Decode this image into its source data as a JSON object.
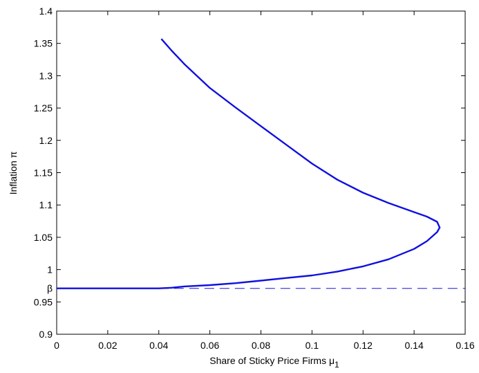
{
  "chart_data": {
    "type": "line",
    "xlabel": "Share of Sticky Price Firms μ",
    "xlabel_subscript": "1",
    "ylabel": "Inflation π",
    "xlim": [
      0,
      0.16
    ],
    "ylim": [
      0.9,
      1.4
    ],
    "x_ticks": [
      "0",
      "0.02",
      "0.04",
      "0.06",
      "0.08",
      "0.1",
      "0.12",
      "0.14",
      "0.16"
    ],
    "y_ticks": [
      "0.9",
      "0.95",
      "1",
      "1.05",
      "1.1",
      "1.15",
      "1.2",
      "1.25",
      "1.3",
      "1.35",
      "1.4"
    ],
    "grid": false,
    "colors": {
      "series": "#1010e0",
      "axes": "#000000"
    },
    "series": [
      {
        "style": "solid",
        "points": [
          [
            0,
            0.971
          ],
          [
            0.02,
            0.971
          ],
          [
            0.04,
            0.971
          ],
          [
            0.045,
            0.972
          ],
          [
            0.05,
            0.974
          ],
          [
            0.06,
            0.976
          ],
          [
            0.07,
            0.979
          ],
          [
            0.08,
            0.983
          ],
          [
            0.09,
            0.987
          ],
          [
            0.1,
            0.991
          ],
          [
            0.11,
            0.997
          ],
          [
            0.12,
            1.005
          ],
          [
            0.13,
            1.016
          ],
          [
            0.14,
            1.032
          ],
          [
            0.145,
            1.044
          ],
          [
            0.149,
            1.058
          ],
          [
            0.15,
            1.065
          ],
          [
            0.149,
            1.074
          ],
          [
            0.145,
            1.082
          ],
          [
            0.14,
            1.089
          ],
          [
            0.13,
            1.103
          ],
          [
            0.12,
            1.119
          ],
          [
            0.11,
            1.139
          ],
          [
            0.1,
            1.164
          ],
          [
            0.09,
            1.193
          ],
          [
            0.08,
            1.222
          ],
          [
            0.07,
            1.251
          ],
          [
            0.06,
            1.281
          ],
          [
            0.05,
            1.318
          ],
          [
            0.045,
            1.339
          ],
          [
            0.041,
            1.357
          ]
        ]
      },
      {
        "style": "dashed",
        "label": "β",
        "points": [
          [
            0.04,
            0.971
          ],
          [
            0.16,
            0.971
          ]
        ]
      }
    ]
  }
}
